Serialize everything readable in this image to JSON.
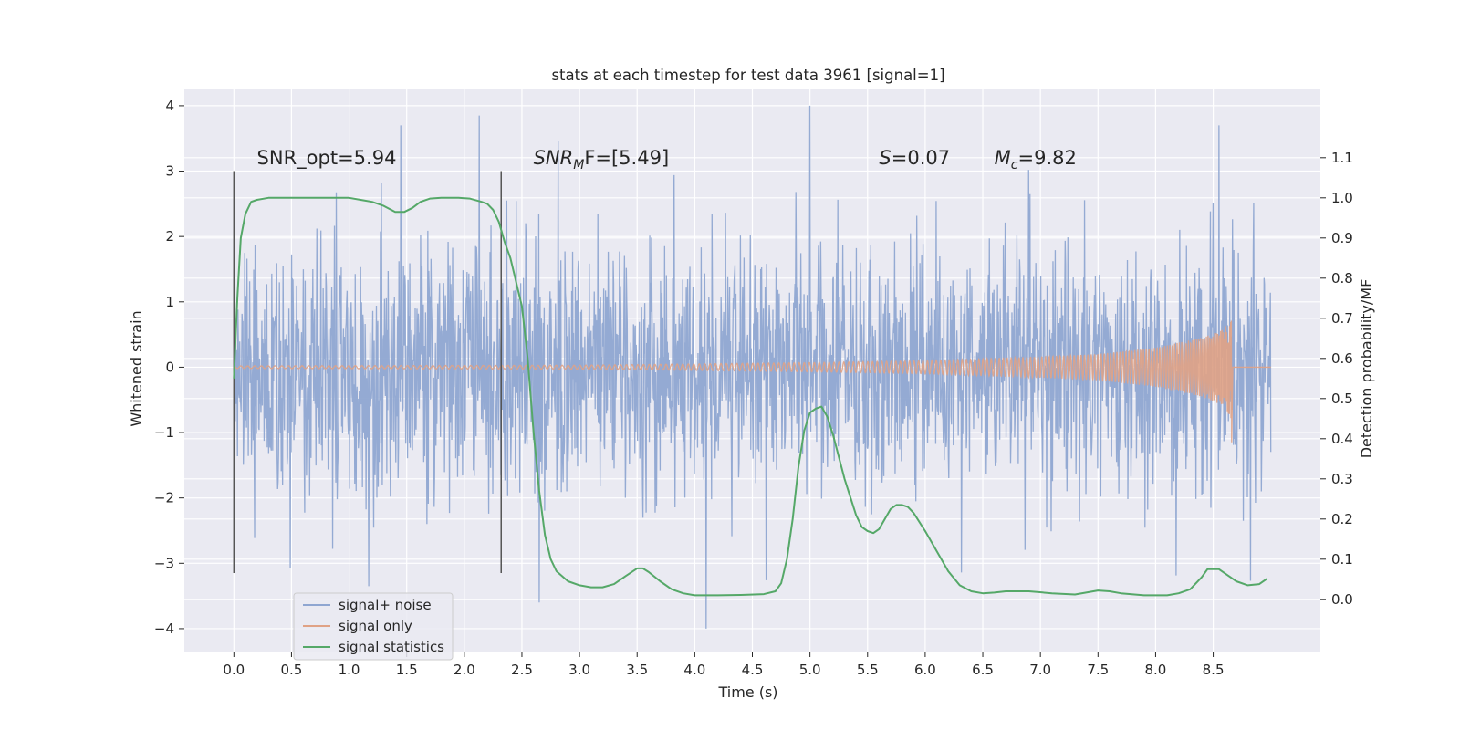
{
  "chart_data": {
    "type": "line",
    "title": "stats at each timestep for test data 3961 [signal=1]",
    "xlabel": "Time (s)",
    "ylabel": "Whitened strain",
    "y2label": "Detection probability/MF",
    "xlim": [
      -0.43,
      9.43
    ],
    "ylim": [
      -4.35,
      4.25
    ],
    "y2lim": [
      -0.13,
      1.27
    ],
    "x_ticks": [
      "0.0",
      "0.5",
      "1.0",
      "1.5",
      "2.0",
      "2.5",
      "3.0",
      "3.5",
      "4.0",
      "4.5",
      "5.0",
      "5.5",
      "6.0",
      "6.5",
      "7.0",
      "7.5",
      "8.0",
      "8.5"
    ],
    "y_ticks": [
      "4",
      "3",
      "2",
      "1",
      "0",
      "−1",
      "−2",
      "−3",
      "−4"
    ],
    "y2_ticks": [
      "1.1",
      "1.0",
      "0.9",
      "0.8",
      "0.7",
      "0.6",
      "0.5",
      "0.4",
      "0.3",
      "0.2",
      "0.1",
      "0.0"
    ],
    "grid": true,
    "legend_position": "lower-left",
    "series": [
      {
        "name": "signal+ noise",
        "color": "#8fa6d1",
        "axis": "left",
        "description": "whitened strain noise, ~N(0,1), 0.0–9.0 s",
        "peaks": [
          [
            1.45,
            3.7
          ],
          [
            2.13,
            3.85
          ],
          [
            5.0,
            4.0
          ],
          [
            8.55,
            3.7
          ],
          [
            4.1,
            -4.0
          ],
          [
            2.65,
            -3.6
          ],
          [
            1.17,
            -3.35
          ]
        ]
      },
      {
        "name": "signal only",
        "color": "#e0a285",
        "axis": "left",
        "envelope": [
          [
            0.0,
            0.02
          ],
          [
            3.0,
            0.03
          ],
          [
            5.0,
            0.07
          ],
          [
            6.0,
            0.1
          ],
          [
            7.0,
            0.16
          ],
          [
            7.5,
            0.2
          ],
          [
            8.0,
            0.3
          ],
          [
            8.4,
            0.45
          ],
          [
            8.6,
            0.6
          ],
          [
            8.65,
            0.78
          ]
        ],
        "end_time": 8.66
      },
      {
        "name": "signal statistics",
        "color": "#55a868",
        "axis": "right",
        "x": [
          0.0,
          0.03,
          0.06,
          0.1,
          0.15,
          0.2,
          0.3,
          0.45,
          0.6,
          0.8,
          1.0,
          1.1,
          1.2,
          1.3,
          1.4,
          1.48,
          1.55,
          1.62,
          1.7,
          1.8,
          1.95,
          2.05,
          2.15,
          2.2,
          2.25,
          2.3,
          2.35,
          2.4,
          2.5,
          2.55,
          2.6,
          2.65,
          2.7,
          2.75,
          2.8,
          2.9,
          3.0,
          3.1,
          3.2,
          3.3,
          3.4,
          3.5,
          3.55,
          3.6,
          3.7,
          3.8,
          3.9,
          4.0,
          4.1,
          4.2,
          4.4,
          4.6,
          4.7,
          4.75,
          4.8,
          4.85,
          4.9,
          4.95,
          5.0,
          5.05,
          5.1,
          5.15,
          5.2,
          5.3,
          5.4,
          5.45,
          5.5,
          5.55,
          5.6,
          5.65,
          5.7,
          5.75,
          5.8,
          5.85,
          5.9,
          6.0,
          6.1,
          6.2,
          6.3,
          6.4,
          6.5,
          6.6,
          6.7,
          6.9,
          7.1,
          7.3,
          7.5,
          7.6,
          7.7,
          7.9,
          8.1,
          8.2,
          8.3,
          8.4,
          8.45,
          8.5,
          8.55,
          8.6,
          8.65,
          8.7,
          8.8,
          8.9,
          8.97
        ],
        "y": [
          0.55,
          0.75,
          0.9,
          0.96,
          0.99,
          0.995,
          1.0,
          1.0,
          1.0,
          1.0,
          1.0,
          0.995,
          0.99,
          0.98,
          0.965,
          0.965,
          0.975,
          0.99,
          0.998,
          1.0,
          1.0,
          0.998,
          0.99,
          0.985,
          0.97,
          0.94,
          0.89,
          0.85,
          0.73,
          0.6,
          0.42,
          0.27,
          0.16,
          0.1,
          0.07,
          0.045,
          0.035,
          0.03,
          0.03,
          0.038,
          0.058,
          0.077,
          0.077,
          0.068,
          0.045,
          0.025,
          0.015,
          0.01,
          0.01,
          0.01,
          0.011,
          0.013,
          0.02,
          0.04,
          0.1,
          0.2,
          0.33,
          0.42,
          0.465,
          0.475,
          0.48,
          0.455,
          0.41,
          0.3,
          0.21,
          0.18,
          0.17,
          0.165,
          0.175,
          0.2,
          0.225,
          0.235,
          0.235,
          0.23,
          0.215,
          0.17,
          0.12,
          0.07,
          0.035,
          0.02,
          0.015,
          0.017,
          0.02,
          0.02,
          0.015,
          0.012,
          0.022,
          0.02,
          0.015,
          0.01,
          0.01,
          0.015,
          0.025,
          0.055,
          0.075,
          0.075,
          0.075,
          0.065,
          0.055,
          0.045,
          0.035,
          0.038,
          0.052
        ]
      }
    ],
    "vertical_markers": [
      {
        "x": 0.0,
        "ymin": -3.15,
        "ymax": 3.0,
        "color": "#555555"
      },
      {
        "x": 2.32,
        "ymin": -3.15,
        "ymax": 3.0,
        "color": "#555555"
      }
    ],
    "annotations": [
      {
        "text": "SNR_opt=5.94",
        "x": 0.2,
        "y": 3.2
      },
      {
        "base": "SNR",
        "sub": "M",
        "rest": "F=[5.49]",
        "x": 2.6,
        "y": 3.2
      },
      {
        "base": "S",
        "rest": "=0.07",
        "x": 5.6,
        "y": 3.2
      },
      {
        "base": "M",
        "sub": "c",
        "rest": "=9.82",
        "x": 6.6,
        "y": 3.2
      }
    ]
  }
}
